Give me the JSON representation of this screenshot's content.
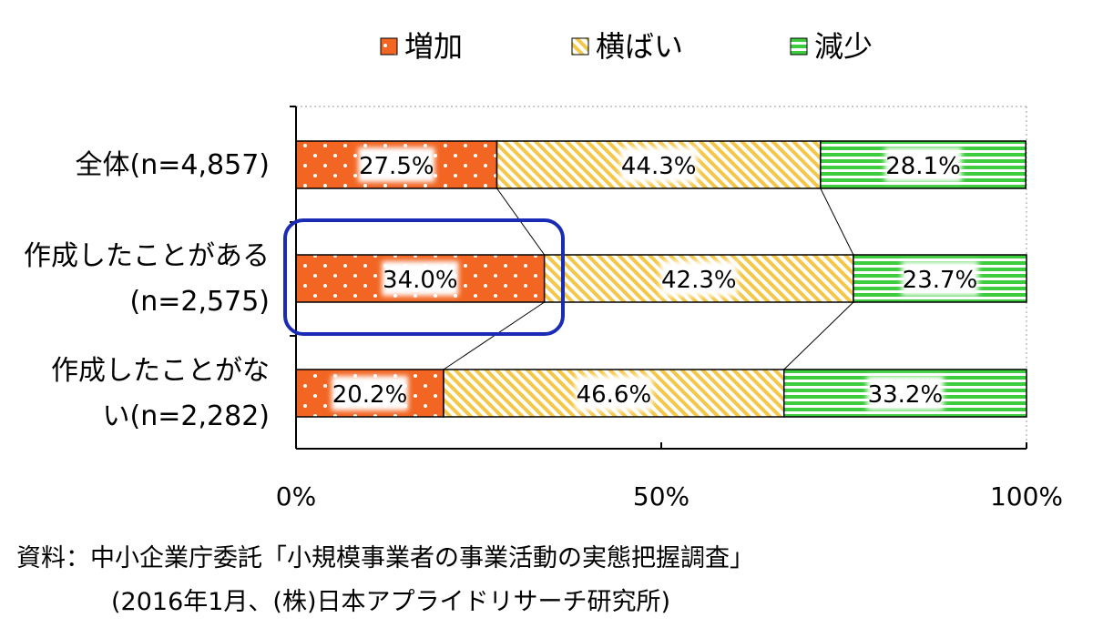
{
  "chart_data": {
    "type": "bar",
    "orientation": "horizontal",
    "stacked": true,
    "categories": [
      [
        "全体(n=4,857)"
      ],
      [
        "作成したことがある",
        "(n=2,575)"
      ],
      [
        "作成したことがな",
        "い(n=2,282)"
      ]
    ],
    "series": [
      {
        "name": "増加",
        "values": [
          27.5,
          34.0,
          20.2
        ],
        "labels": [
          "27.5%",
          "34.0%",
          "20.2%"
        ],
        "color": "#f26522",
        "pattern": "dots"
      },
      {
        "name": "横ばい",
        "values": [
          44.3,
          42.3,
          46.6
        ],
        "labels": [
          "44.3%",
          "42.3%",
          "46.6%"
        ],
        "color": "#f5c748",
        "pattern": "diagonal"
      },
      {
        "name": "減少",
        "values": [
          28.1,
          23.7,
          33.2
        ],
        "labels": [
          "28.1%",
          "23.7%",
          "33.2%"
        ],
        "color": "#3dcc3d",
        "pattern": "horizontal"
      }
    ],
    "xlim": [
      0,
      100
    ],
    "xticks": [
      "0%",
      "50%",
      "100%"
    ],
    "legend_position": "top",
    "highlight_category": 1,
    "highlight_color": "#1a2bb5"
  },
  "source": {
    "line1": "資料：中小企業庁委託「小規模事業者の事業活動の実態把握調査」",
    "line2": "(2016年1月、(株)日本アプライドリサーチ研究所)"
  }
}
